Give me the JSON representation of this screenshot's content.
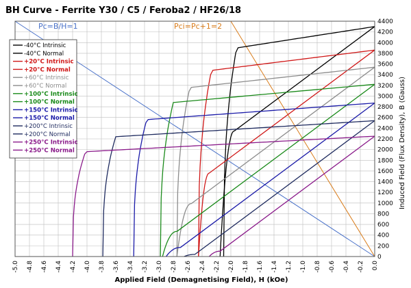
{
  "chart_data": {
    "type": "line",
    "title": "BH Curve - Ferrite Y30 / C5 / Feroba2 / HF26/18",
    "xlabel": "Applied Field (Demagnetising Field), H (kOe)",
    "ylabel": "Induced Field (Flux Density), B (Gauss)",
    "xlim": [
      -5.0,
      0.0
    ],
    "ylim": [
      0,
      4400
    ],
    "x_ticks": [
      "-5.0",
      "-4.8",
      "-4.6",
      "-4.4",
      "-4.2",
      "-4.0",
      "-3.8",
      "-3.6",
      "-3.4",
      "-3.2",
      "-3.0",
      "-2.8",
      "-2.6",
      "-2.4",
      "-2.2",
      "-2.0",
      "-1.8",
      "-1.6",
      "-1.4",
      "-1.2",
      "-1.0",
      "-0.8",
      "-0.6",
      "-0.4",
      "-0.2",
      "0.0"
    ],
    "y_ticks": [
      "0",
      "200",
      "400",
      "600",
      "800",
      "1000",
      "1200",
      "1400",
      "1600",
      "1800",
      "2000",
      "2200",
      "2400",
      "2600",
      "2800",
      "3000",
      "3200",
      "3400",
      "3600",
      "3800",
      "4000",
      "4200",
      "4400"
    ],
    "grid": true,
    "legend_position": "top-left",
    "annotations": [
      {
        "text": "Pc=B/H=1",
        "color": "#4a72c9"
      },
      {
        "text": "Pci=Pc+1=2",
        "color": "#d97c1a"
      }
    ],
    "reference_lines": [
      {
        "name": "Pc=B/H=1",
        "color": "#4a72c9",
        "points": [
          [
            -5.0,
            4400
          ],
          [
            0.0,
            0
          ]
        ]
      },
      {
        "name": "Pci=Pc+1=2",
        "color": "#d97c1a",
        "points": [
          [
            -2.0,
            4400
          ],
          [
            0.0,
            0
          ]
        ]
      }
    ],
    "series": [
      {
        "name": "-40°C Intrinsic",
        "color": "#000000",
        "kind": "intrinsic",
        "hci": -2.1,
        "br": 4300,
        "plateau": 3900,
        "legend_bold": false
      },
      {
        "name": "-40°C Normal",
        "color": "#000000",
        "kind": "normal",
        "hcb": -2.15,
        "br": 4300,
        "knee_h": -1.95,
        "legend_bold": false
      },
      {
        "name": "+20°C Intrinsic",
        "color": "#d01818",
        "kind": "intrinsic",
        "hci": -2.45,
        "br": 3860,
        "plateau": 3480,
        "legend_bold": true
      },
      {
        "name": "+20°C Normal",
        "color": "#d01818",
        "kind": "normal",
        "hcb": -2.45,
        "br": 3860,
        "knee_h": -2.3,
        "legend_bold": true
      },
      {
        "name": "+60°C Intrinsic",
        "color": "#8c8c8c",
        "kind": "intrinsic",
        "hci": -2.75,
        "br": 3540,
        "plateau": 3160,
        "legend_bold": false
      },
      {
        "name": "+60°C Normal",
        "color": "#8c8c8c",
        "kind": "normal",
        "hcb": -2.75,
        "br": 3540,
        "knee_h": -2.55,
        "legend_bold": false
      },
      {
        "name": "+100°C Intrinsic",
        "color": "#1a8a1a",
        "kind": "intrinsic",
        "hci": -2.98,
        "br": 3220,
        "plateau": 2880,
        "legend_bold": true
      },
      {
        "name": "+100°C Normal",
        "color": "#1a8a1a",
        "kind": "normal",
        "hcb": -2.95,
        "br": 3220,
        "knee_h": -2.75,
        "legend_bold": true
      },
      {
        "name": "+150°C Intrinsic",
        "color": "#1a1aa8",
        "kind": "intrinsic",
        "hci": -3.35,
        "br": 2870,
        "plateau": 2560,
        "legend_bold": true
      },
      {
        "name": "+150°C Normal",
        "color": "#1a1aa8",
        "kind": "normal",
        "hcb": -2.9,
        "br": 2870,
        "knee_h": -2.7,
        "legend_bold": true
      },
      {
        "name": "+200°C Intrinsic",
        "color": "#1e2a5e",
        "kind": "intrinsic",
        "hci": -3.78,
        "br": 2540,
        "plateau": 2240,
        "legend_bold": false
      },
      {
        "name": "+200°C Normal",
        "color": "#1e2a5e",
        "kind": "normal",
        "hcb": -2.65,
        "br": 2540,
        "knee_h": -2.5,
        "legend_bold": false
      },
      {
        "name": "+250°C Intrinsic",
        "color": "#8a1a8a",
        "kind": "intrinsic",
        "hci": -4.2,
        "br": 2250,
        "plateau": 1960,
        "legend_bold": true
      },
      {
        "name": "+250°C Normal",
        "color": "#8a1a8a",
        "kind": "normal",
        "hcb": -2.3,
        "br": 2250,
        "knee_h": -2.15,
        "legend_bold": true
      }
    ]
  }
}
